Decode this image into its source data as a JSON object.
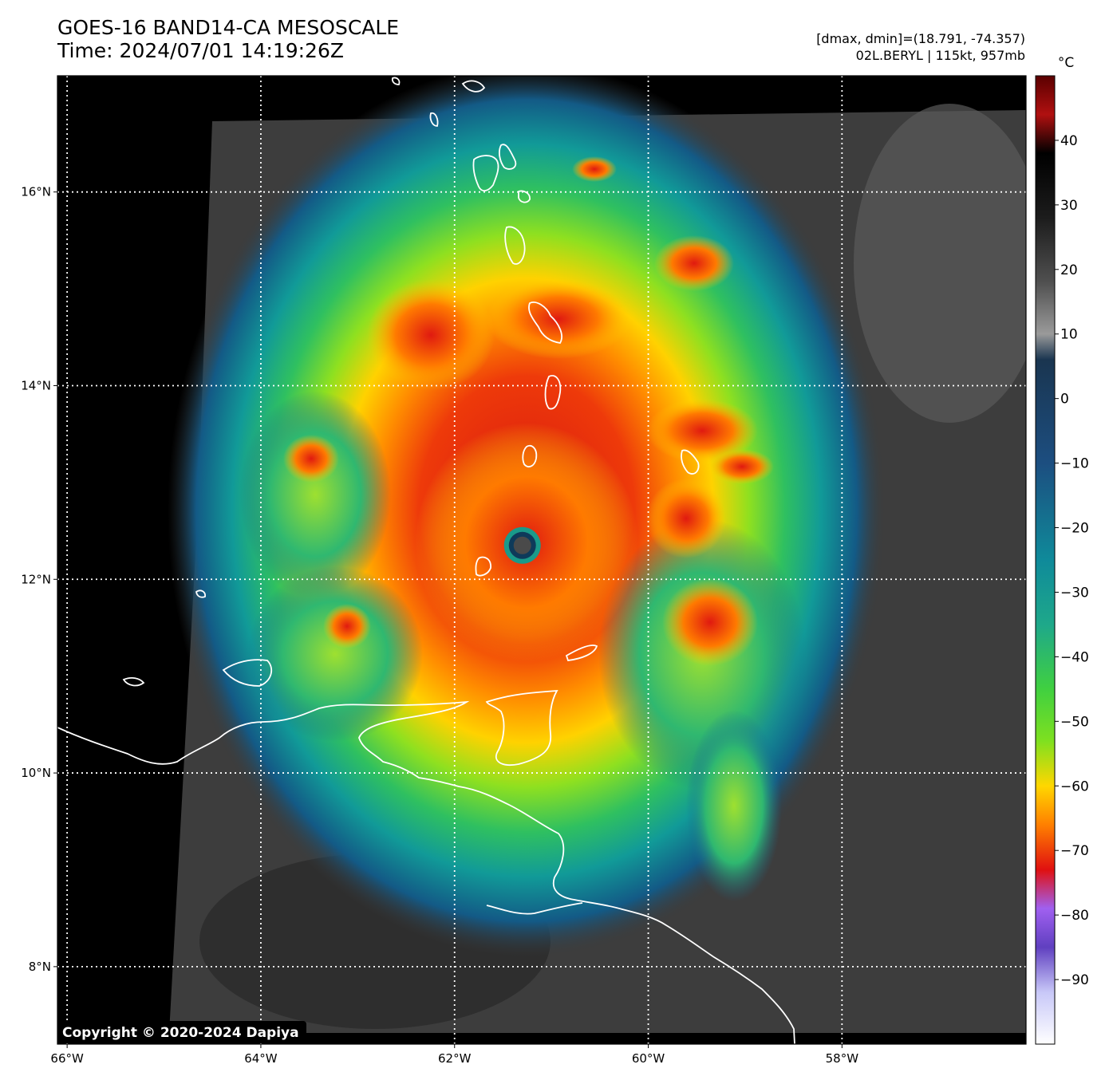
{
  "title": {
    "line1": "GOES-16 BAND14-CA MESOSCALE",
    "line2": "Time: 2024/07/01 14:19:26Z"
  },
  "info": {
    "line1": "[dmax, dmin]=(18.791, -74.357)",
    "line2": "02L.BERYL | 115kt, 957mb"
  },
  "map": {
    "lon_range": [
      -66.1,
      -56.1
    ],
    "lat_range": [
      7.2,
      17.2
    ],
    "lon_ticks": [
      {
        "value": -66,
        "label": "66°W"
      },
      {
        "value": -64,
        "label": "64°W"
      },
      {
        "value": -62,
        "label": "62°W"
      },
      {
        "value": -60,
        "label": "60°W"
      },
      {
        "value": -58,
        "label": "58°W"
      }
    ],
    "lat_ticks": [
      {
        "value": 16,
        "label": "16°N"
      },
      {
        "value": 14,
        "label": "14°N"
      },
      {
        "value": 12,
        "label": "12°N"
      },
      {
        "value": 10,
        "label": "10°N"
      },
      {
        "value": 8,
        "label": "8°N"
      }
    ],
    "storm_center": {
      "lon": -61.3,
      "lat": 12.35
    },
    "copyright": "Copyright © 2020-2024 Dapiya"
  },
  "colorbar": {
    "unit": "°C",
    "ticks": [
      {
        "value": 40,
        "label": "40"
      },
      {
        "value": 30,
        "label": "30"
      },
      {
        "value": 20,
        "label": "20"
      },
      {
        "value": 10,
        "label": "10"
      },
      {
        "value": 0,
        "label": "0"
      },
      {
        "value": -10,
        "label": "−10"
      },
      {
        "value": -20,
        "label": "−20"
      },
      {
        "value": -30,
        "label": "−30"
      },
      {
        "value": -40,
        "label": "−40"
      },
      {
        "value": -50,
        "label": "−50"
      },
      {
        "value": -60,
        "label": "−60"
      },
      {
        "value": -70,
        "label": "−70"
      },
      {
        "value": -80,
        "label": "−80"
      },
      {
        "value": -90,
        "label": "−90"
      }
    ],
    "range": [
      -100,
      50
    ],
    "stops": [
      {
        "value": 50,
        "color": "#5a0000"
      },
      {
        "value": 44,
        "color": "#b01010"
      },
      {
        "value": 38,
        "color": "#000000"
      },
      {
        "value": 28,
        "color": "#1c1c1c"
      },
      {
        "value": 18,
        "color": "#505050"
      },
      {
        "value": 10,
        "color": "#9a9a9a"
      },
      {
        "value": 6,
        "color": "#1a3550"
      },
      {
        "value": -10,
        "color": "#1c4e80"
      },
      {
        "value": -25,
        "color": "#0f8a9a"
      },
      {
        "value": -35,
        "color": "#1ea88a"
      },
      {
        "value": -45,
        "color": "#40d040"
      },
      {
        "value": -53,
        "color": "#7ee020"
      },
      {
        "value": -60,
        "color": "#ffd700"
      },
      {
        "value": -66,
        "color": "#ff8000"
      },
      {
        "value": -73,
        "color": "#e01010"
      },
      {
        "value": -79,
        "color": "#a060f0"
      },
      {
        "value": -85,
        "color": "#6040c0"
      },
      {
        "value": -92,
        "color": "#c8c8f8"
      },
      {
        "value": -100,
        "color": "#ffffff"
      }
    ]
  }
}
